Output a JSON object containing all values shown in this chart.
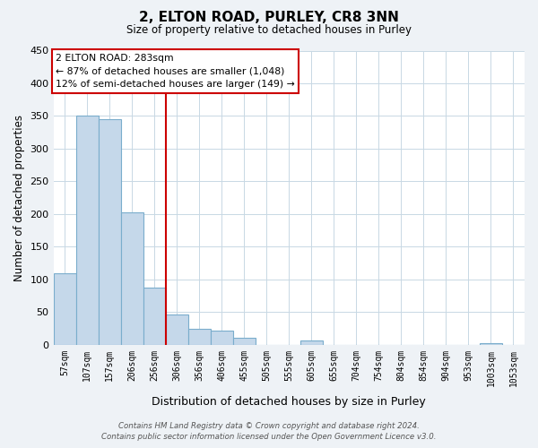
{
  "title": "2, ELTON ROAD, PURLEY, CR8 3NN",
  "subtitle": "Size of property relative to detached houses in Purley",
  "xlabel": "Distribution of detached houses by size in Purley",
  "ylabel": "Number of detached properties",
  "bar_labels": [
    "57sqm",
    "107sqm",
    "157sqm",
    "206sqm",
    "256sqm",
    "306sqm",
    "356sqm",
    "406sqm",
    "455sqm",
    "505sqm",
    "555sqm",
    "605sqm",
    "655sqm",
    "704sqm",
    "754sqm",
    "804sqm",
    "854sqm",
    "904sqm",
    "953sqm",
    "1003sqm",
    "1053sqm"
  ],
  "bar_values": [
    110,
    350,
    345,
    203,
    87,
    47,
    25,
    22,
    11,
    0,
    0,
    7,
    0,
    0,
    0,
    0,
    0,
    0,
    0,
    2,
    0
  ],
  "bar_color": "#c5d8ea",
  "bar_edge_color": "#7aadcc",
  "vline_x_idx": 5,
  "vline_color": "#cc0000",
  "annotation_title": "2 ELTON ROAD: 283sqm",
  "annotation_line1": "← 87% of detached houses are smaller (1,048)",
  "annotation_line2": "12% of semi-detached houses are larger (149) →",
  "annotation_box_color": "#ffffff",
  "annotation_box_edge": "#cc0000",
  "ylim": [
    0,
    450
  ],
  "yticks": [
    0,
    50,
    100,
    150,
    200,
    250,
    300,
    350,
    400,
    450
  ],
  "footer_line1": "Contains HM Land Registry data © Crown copyright and database right 2024.",
  "footer_line2": "Contains public sector information licensed under the Open Government Licence v3.0.",
  "bg_color": "#eef2f6",
  "plot_bg_color": "#ffffff",
  "grid_color": "#c8d8e4"
}
